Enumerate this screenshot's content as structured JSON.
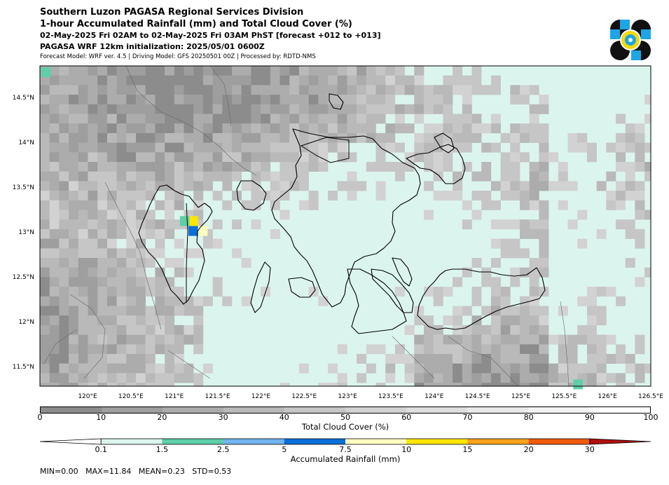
{
  "header": {
    "title1": "Southern Luzon PAGASA Regional Services Division",
    "title2": "1-hour Accumulated Rainfall (mm) and Total Cloud Cover (%)",
    "title3": "02-May-2025 Fri 02AM to 02-May-2025 Fri 03AM PhST [forecast +012 to +013]",
    "title4": "PAGASA WRF 12km initialization: 2025/05/01 0600Z",
    "subtitle": "Forecast Model: WRF ver. 4.5 | Driving Model: GFS 20250501 00Z | Processed by: RDTD-NMS"
  },
  "map": {
    "lon_range": [
      119.45,
      126.5
    ],
    "lat_range": [
      11.28,
      14.85
    ],
    "lon_ticks": [
      "120°E",
      "120.5°E",
      "121°E",
      "121.5°E",
      "122°E",
      "122.5°E",
      "123°E",
      "123.5°E",
      "124°E",
      "124.5°E",
      "125°E",
      "125.5°E",
      "126°E",
      "126.5°E"
    ],
    "lon_tick_values": [
      120,
      120.5,
      121,
      121.5,
      122,
      122.5,
      123,
      123.5,
      124,
      124.5,
      125,
      125.5,
      126,
      126.5
    ],
    "lat_ticks": [
      "14.5°N",
      "14°N",
      "13.5°N",
      "13°N",
      "12.5°N",
      "12°N",
      "11.5°N"
    ],
    "lat_tick_values": [
      14.5,
      14.0,
      13.5,
      13.0,
      12.5,
      12.0,
      11.5
    ],
    "rain_cells": [
      {
        "lon": 121.22,
        "lat": 13.12,
        "value": 11.84,
        "color": "#ffe600"
      },
      {
        "lon": 121.12,
        "lat": 13.12,
        "value": 2.0,
        "color": "#5ecfa8"
      },
      {
        "lon": 121.22,
        "lat": 13.01,
        "value": 6.0,
        "color": "#0a6fd8"
      },
      {
        "lon": 121.33,
        "lat": 13.01,
        "value": 8.0,
        "color": "#ffffc0"
      },
      {
        "lon": 119.52,
        "lat": 14.78,
        "value": 2.0,
        "color": "#5ecfa8"
      },
      {
        "lon": 125.66,
        "lat": 11.3,
        "value": 2.0,
        "color": "#5ecfa8"
      }
    ]
  },
  "cloud_colorbar": {
    "title": "Total Cloud Cover (%)",
    "ticks": [
      "0",
      "10",
      "20",
      "30",
      "40",
      "50",
      "60",
      "70",
      "80",
      "90",
      "100"
    ],
    "colors": [
      "#8c8c8c",
      "#9e9e9e",
      "#acacac",
      "#b9b9b9",
      "#c6c6c6",
      "#d2d2d2",
      "#dedede",
      "#e9e9e9",
      "#f3f3f3",
      "#ffffff"
    ]
  },
  "rain_colorbar": {
    "title": "Accumulated Rainfall (mm)",
    "ticks": [
      "0.1",
      "1.5",
      "2.5",
      "5",
      "7.5",
      "10",
      "15",
      "20",
      "30"
    ],
    "under_color": "#ffffff",
    "colors": [
      "#dcf4ee",
      "#5ecfa8",
      "#72b4ee",
      "#0a6fd8",
      "#ffffc0",
      "#ffe600",
      "#f7a21c",
      "#f25a0c"
    ],
    "over_color": "#b01010"
  },
  "stats": {
    "text": "MIN=0.00   MAX=11.84   MEAN=0.23   STD=0.53"
  }
}
